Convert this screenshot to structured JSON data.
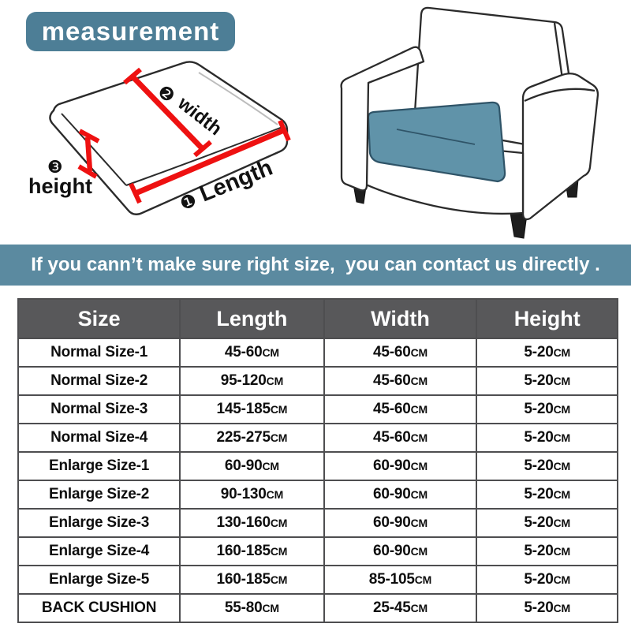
{
  "badge": {
    "label": "measurement"
  },
  "diagram": {
    "length": {
      "num": "❶",
      "text": "Length"
    },
    "width": {
      "num": "❷",
      "text": "width"
    },
    "height": {
      "num": "❸",
      "text": "height"
    }
  },
  "banner": {
    "text": "If you cann’t make sure right size,  you can contact us directly ."
  },
  "table": {
    "headers": [
      "Size",
      "Length",
      "Width",
      "Height"
    ],
    "rows": [
      {
        "size": "Normal Size-1",
        "length": "45-60CM",
        "width": "45-60CM",
        "height": "5-20CM"
      },
      {
        "size": "Normal Size-2",
        "length": "95-120CM",
        "width": "45-60CM",
        "height": "5-20CM"
      },
      {
        "size": "Normal Size-3",
        "length": "145-185CM",
        "width": "45-60CM",
        "height": "5-20CM"
      },
      {
        "size": "Normal Size-4",
        "length": "225-275CM",
        "width": "45-60CM",
        "height": "5-20CM"
      },
      {
        "size": "Enlarge Size-1",
        "length": "60-90CM",
        "width": "60-90CM",
        "height": "5-20CM"
      },
      {
        "size": "Enlarge Size-2",
        "length": "90-130CM",
        "width": "60-90CM",
        "height": "5-20CM"
      },
      {
        "size": "Enlarge Size-3",
        "length": "130-160CM",
        "width": "60-90CM",
        "height": "5-20CM"
      },
      {
        "size": "Enlarge Size-4",
        "length": "160-185CM",
        "width": "60-90CM",
        "height": "5-20CM"
      },
      {
        "size": "Enlarge Size-5",
        "length": "160-185CM",
        "width": "85-105CM",
        "height": "5-20CM"
      },
      {
        "size": "BACK CUSHION",
        "length": "55-80CM",
        "width": "25-45CM",
        "height": "5-20CM"
      }
    ]
  },
  "colors": {
    "badge_teal": "#4d7e96",
    "banner_teal": "#5b8aa0",
    "cushion_teal": "#6093a9",
    "cushion_edge": "#2f5468",
    "header_gray": "#58585a",
    "arrow_red": "#ee1111",
    "line_dark": "#2b2b2b",
    "leg_dark": "#1e1e1e"
  }
}
